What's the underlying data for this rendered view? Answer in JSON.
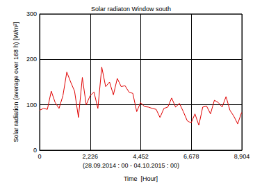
{
  "chart_data": {
    "type": "line",
    "title": "Solar radiaton Window south",
    "xlabel": "Time  [Hour]",
    "ylabel": "Solar radiation (average over 168 h) [W/m²]",
    "annotations": [
      "(28.09.2014 : 00 - 04.10.2015 : 00)"
    ],
    "x": [
      0,
      171,
      342,
      513,
      684,
      855,
      1026,
      1197,
      1368,
      1539,
      1710,
      1881,
      2052,
      2223,
      2394,
      2565,
      2736,
      2907,
      3078,
      3249,
      3420,
      3591,
      3762,
      3933,
      4104,
      4275,
      4446,
      4617,
      4788,
      4959,
      5130,
      5301,
      5472,
      5643,
      5814,
      5985,
      6156,
      6327,
      6498,
      6669,
      6840,
      7011,
      7182,
      7353,
      7524,
      7695,
      7866,
      8037,
      8208,
      8379,
      8550,
      8721,
      8892
    ],
    "values": [
      88,
      92,
      90,
      130,
      105,
      92,
      120,
      172,
      150,
      130,
      72,
      160,
      100,
      120,
      128,
      92,
      183,
      140,
      150,
      122,
      158,
      140,
      142,
      128,
      125,
      85,
      105,
      96,
      95,
      92,
      90,
      72,
      92,
      95,
      115,
      95,
      103,
      85,
      65,
      60,
      80,
      55,
      95,
      97,
      80,
      110,
      105,
      95,
      118,
      88,
      75,
      58,
      83
    ],
    "color": "#e00000",
    "xlim": [
      0,
      8904
    ],
    "xticks": [
      0,
      2226,
      4452,
      6678,
      8904
    ],
    "ylim": [
      0,
      300
    ],
    "yticks": [
      0,
      100,
      200,
      300
    ],
    "grid": true
  }
}
